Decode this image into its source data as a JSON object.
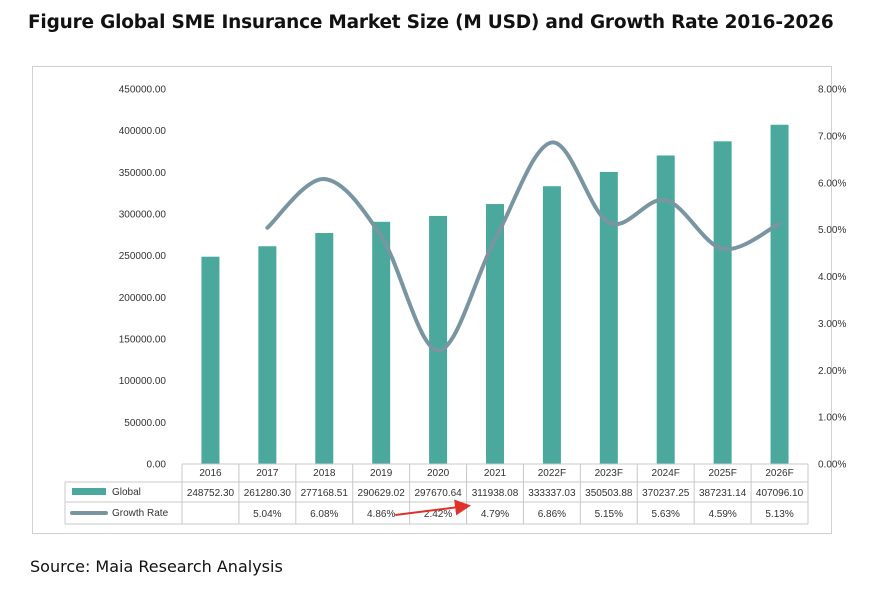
{
  "title": "Figure Global SME Insurance Market Size (M USD) and Growth Rate 2016-2026",
  "source": "Source: Maia Research Analysis",
  "colors": {
    "bar": "#4aa99c",
    "line": "#7a95a2",
    "arrow": "#e0322b"
  },
  "chart_data": {
    "type": "bar",
    "categories": [
      "2016",
      "2017",
      "2018",
      "2019",
      "2020",
      "2021",
      "2022F",
      "2023F",
      "2024F",
      "2025F",
      "2026F"
    ],
    "series": [
      {
        "name": "Global",
        "type": "bar",
        "axis": "left",
        "values": [
          248752.3,
          261280.3,
          277168.51,
          290629.02,
          297670.64,
          311938.08,
          333337.03,
          350503.88,
          370237.25,
          387231.14,
          407096.1
        ],
        "labels": [
          "248752.30",
          "261280.30",
          "277168.51",
          "290629.02",
          "297670.64",
          "311938.08",
          "333337.03",
          "350503.88",
          "370237.25",
          "387231.14",
          "407096.10"
        ]
      },
      {
        "name": "Growth Rate",
        "type": "line",
        "axis": "right",
        "values": [
          null,
          5.04,
          6.08,
          4.86,
          2.42,
          4.79,
          6.86,
          5.15,
          5.63,
          4.59,
          5.13
        ],
        "labels": [
          "",
          "5.04%",
          "6.08%",
          "4.86%",
          "2.42%",
          "4.79%",
          "6.86%",
          "5.15%",
          "5.63%",
          "4.59%",
          "5.13%"
        ]
      }
    ],
    "y_left": {
      "range": [
        0,
        450000
      ],
      "ticks": [
        "0.00",
        "50000.00",
        "100000.00",
        "150000.00",
        "200000.00",
        "250000.00",
        "300000.00",
        "350000.00",
        "400000.00",
        "450000.00"
      ]
    },
    "y_right": {
      "range": [
        0,
        8
      ],
      "ticks": [
        "0.00%",
        "1.00%",
        "2.00%",
        "3.00%",
        "4.00%",
        "5.00%",
        "6.00%",
        "7.00%",
        "8.00%"
      ]
    },
    "grid": false,
    "legend": "data-table",
    "annotation": "red arrow pointing from 2019 toward 2021 in the data table"
  }
}
